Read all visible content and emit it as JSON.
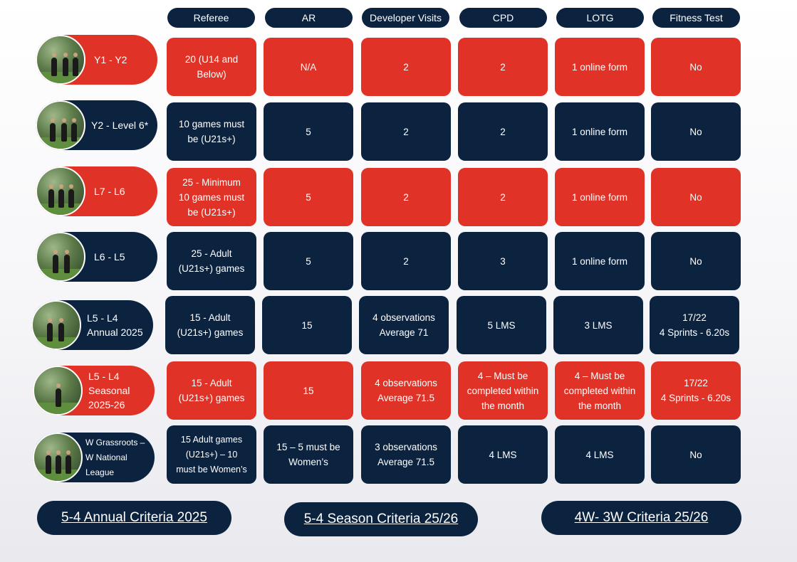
{
  "headers": [
    "Referee",
    "AR",
    "Developer Visits",
    "CPD",
    "LOTG",
    "Fitness Test"
  ],
  "rows": [
    {
      "label": "Y1 - Y2",
      "color": "red",
      "cells": [
        "20 (U14 and\nBelow)",
        "N/A",
        "2",
        "2",
        "1 online form",
        "No"
      ]
    },
    {
      "label": "Y2 - Level 6*",
      "color": "navy",
      "cells": [
        "10 games must\nbe (U21s+)",
        "5",
        "2",
        "2",
        "1 online form",
        "No"
      ]
    },
    {
      "label": "L7 - L6",
      "color": "red",
      "cells": [
        "25 - Minimum\n10 games must\nbe (U21s+)",
        "5",
        "2",
        "2",
        "1 online form",
        "No"
      ]
    },
    {
      "label": "L6 - L5",
      "color": "navy",
      "cells": [
        "25 - Adult\n(U21s+) games",
        "5",
        "2",
        "3",
        "1 online form",
        "No"
      ]
    },
    {
      "label": "L5 - L4\nAnnual 2025",
      "color": "navy",
      "cells": [
        "15 - Adult\n(U21s+) games",
        "15",
        "4 observations\nAverage 71",
        "5 LMS",
        "3 LMS",
        "17/22\n4 Sprints - 6.20s"
      ]
    },
    {
      "label": "L5 - L4\nSeasonal\n2025-26",
      "color": "red",
      "cells": [
        "15 - Adult\n(U21s+) games",
        "15",
        "4 observations\nAverage 71.5",
        "4 – Must be\ncompleted within\nthe month",
        "4 – Must be\ncompleted within\nthe month",
        "17/22\n4 Sprints - 6.20s"
      ]
    },
    {
      "label": "W Grassroots –\nW National League",
      "color": "navy",
      "cells": [
        "15 Adult games\n(U21s+) – 10\nmust be Women’s",
        "15 – 5 must be\nWomen’s",
        "3 observations\nAverage 71.5",
        "4 LMS",
        "4 LMS",
        "No"
      ]
    }
  ],
  "links": [
    "5-4 Annual Criteria 2025",
    "5-4 Season Criteria 25/26",
    "4W- 3W Criteria 25/26"
  ],
  "colors": {
    "red": "#e03226",
    "navy": "#0c2340"
  }
}
